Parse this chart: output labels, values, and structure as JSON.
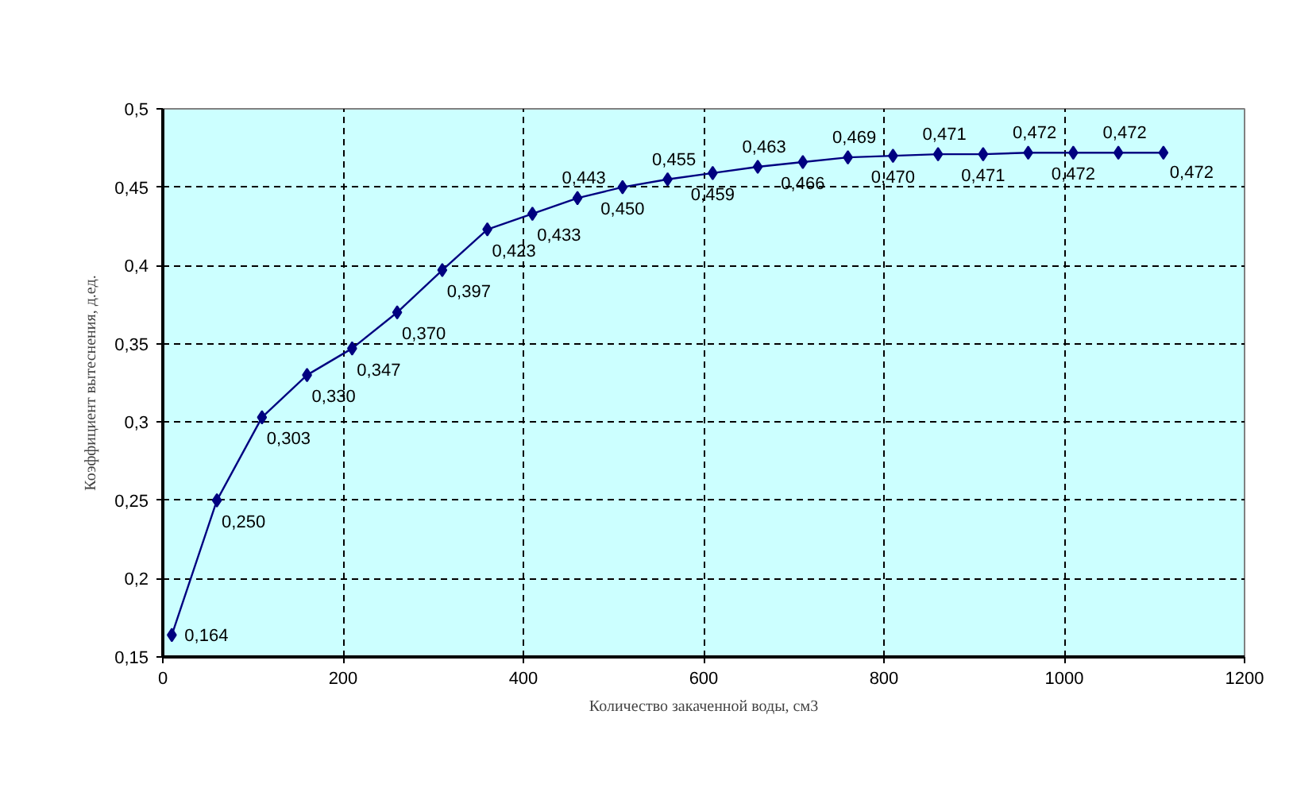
{
  "chart_data": {
    "type": "line",
    "xlabel": "Количество закаченной воды, см3",
    "ylabel": "Коэффициент вытеснения, д.ед.",
    "x": [
      10,
      60,
      110,
      160,
      210,
      260,
      310,
      360,
      410,
      460,
      510,
      560,
      610,
      660,
      710,
      760,
      810,
      860,
      910,
      960,
      1010,
      1060,
      1110
    ],
    "series": [
      {
        "color": "#000080",
        "values": [
          0.164,
          0.25,
          0.303,
          0.33,
          0.347,
          0.37,
          0.397,
          0.423,
          0.433,
          0.443,
          0.45,
          0.455,
          0.459,
          0.463,
          0.466,
          0.469,
          0.47,
          0.471,
          0.471,
          0.472,
          0.472,
          0.472,
          0.472
        ],
        "value_labels": [
          "0,164",
          "0,250",
          "0,303",
          "0,330",
          "0,347",
          "0,370",
          "0,397",
          "0,423",
          "0,433",
          "0,443",
          "0,450",
          "0,455",
          "0,459",
          "0,463",
          "0,466",
          "0,469",
          "0,470",
          "0,471",
          "0,471",
          "0,472",
          "0,472",
          "0,472",
          "0,472"
        ]
      }
    ],
    "xlim": [
      0,
      1200
    ],
    "xticks": [
      0,
      200,
      400,
      600,
      800,
      1000,
      1200
    ],
    "ylim": [
      0.15,
      0.5
    ],
    "yticks": [
      {
        "value": 0.15,
        "label": "0,15"
      },
      {
        "value": 0.2,
        "label": "0,2"
      },
      {
        "value": 0.25,
        "label": "0,25"
      },
      {
        "value": 0.3,
        "label": "0,3"
      },
      {
        "value": 0.35,
        "label": "0,35"
      },
      {
        "value": 0.4,
        "label": "0,4"
      },
      {
        "value": 0.45,
        "label": "0,45"
      },
      {
        "value": 0.5,
        "label": "0,5"
      }
    ],
    "grid": true,
    "marker": "diamond",
    "line_style": "solid"
  }
}
